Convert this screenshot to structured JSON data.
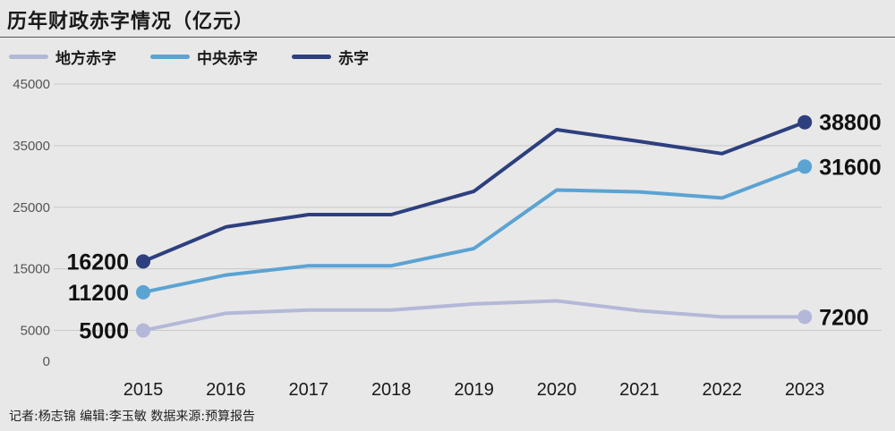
{
  "chart_data": {
    "type": "line",
    "title": "历年财政赤字情况（亿元）",
    "categories": [
      "2015",
      "2016",
      "2017",
      "2018",
      "2019",
      "2020",
      "2021",
      "2022",
      "2023"
    ],
    "ylim": [
      0,
      45000
    ],
    "yticks": [
      0,
      5000,
      15000,
      25000,
      35000,
      45000
    ],
    "grid": true,
    "legend_placement": "top-left",
    "series": [
      {
        "name": "地方赤字",
        "color": "#b4b8d8",
        "values": [
          5000,
          7800,
          8300,
          8300,
          9300,
          9800,
          8200,
          7200,
          7200
        ],
        "labels": [
          {
            "index": 0,
            "text": "5000"
          },
          {
            "index": 8,
            "text": "7200"
          }
        ]
      },
      {
        "name": "中央赤字",
        "color": "#5ba3d3",
        "values": [
          11200,
          14000,
          15500,
          15500,
          18300,
          27800,
          27500,
          26500,
          31600
        ],
        "labels": [
          {
            "index": 0,
            "text": "11200"
          },
          {
            "index": 8,
            "text": "31600"
          }
        ]
      },
      {
        "name": "赤字",
        "color": "#2d3f7e",
        "values": [
          16200,
          21800,
          23800,
          23800,
          27600,
          37600,
          35700,
          33700,
          38800
        ],
        "labels": [
          {
            "index": 0,
            "text": "16200"
          },
          {
            "index": 8,
            "text": "38800"
          }
        ]
      }
    ]
  },
  "footer": {
    "credits": "记者:杨志锦   编辑:李玉敏   数据来源:预算报告"
  }
}
